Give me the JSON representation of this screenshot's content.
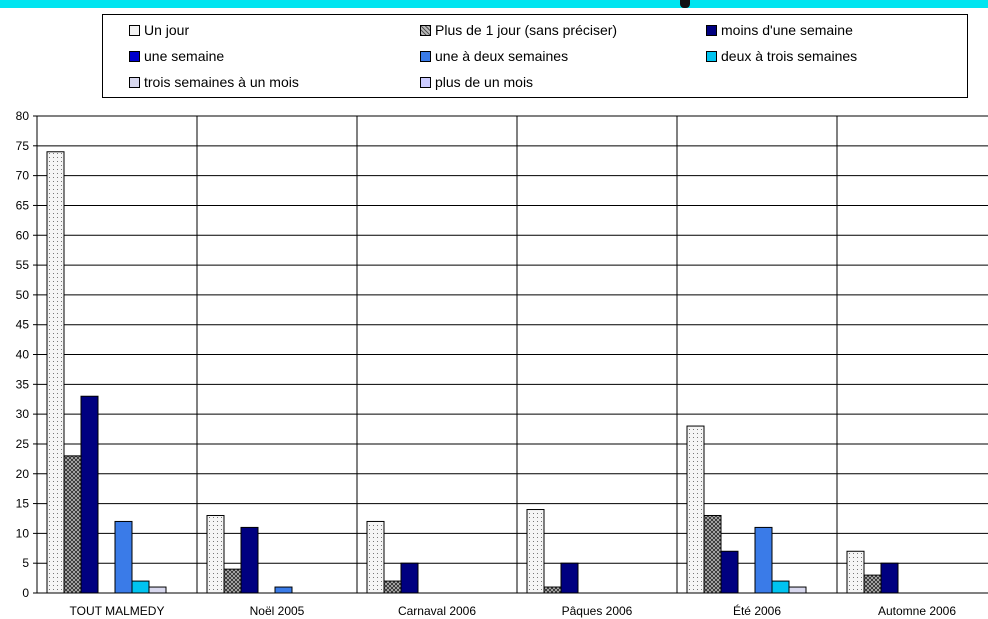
{
  "colors": {
    "top_band": "#00e5f0",
    "un_jour": "#f2f2f2",
    "plus_1_jour": "#808080",
    "moins_semaine": "#000080",
    "une_semaine": "#0000cc",
    "une_deux": "#3a7be8",
    "deux_trois": "#00c4f0",
    "trois_mois": "#d8d8ee",
    "plus_mois": "#ccccff"
  },
  "chart_data": {
    "type": "bar",
    "title": "",
    "xlabel": "",
    "ylabel": "",
    "ylim": [
      0,
      80
    ],
    "yticks": [
      "0",
      "5",
      "10",
      "15",
      "20",
      "25",
      "30",
      "35",
      "40",
      "45",
      "50",
      "55",
      "60",
      "65",
      "70",
      "75",
      "80"
    ],
    "grid": true,
    "legend_position": "top",
    "categories": [
      "TOUT MALMEDY",
      "Noël 2005",
      "Carnaval 2006",
      "Pâques 2006",
      "Été 2006",
      "Automne 2006"
    ],
    "series": [
      {
        "name": "Un jour",
        "color": "#f2f2f2",
        "pattern": "dots",
        "values": [
          74,
          13,
          12,
          14,
          28,
          7
        ]
      },
      {
        "name": "Plus de 1 jour (sans préciser)",
        "color": "#808080",
        "pattern": "crosshatch",
        "values": [
          23,
          4,
          2,
          1,
          13,
          3
        ]
      },
      {
        "name": "moins d'une semaine",
        "color": "#000080",
        "pattern": "solid",
        "values": [
          33,
          11,
          5,
          5,
          7,
          5
        ]
      },
      {
        "name": "une semaine",
        "color": "#0000cc",
        "pattern": "solid",
        "values": [
          0,
          0,
          0,
          0,
          0,
          0
        ]
      },
      {
        "name": "une à deux semaines",
        "color": "#3a7be8",
        "pattern": "solid",
        "values": [
          12,
          1,
          0,
          0,
          11,
          0
        ]
      },
      {
        "name": "deux à trois semaines",
        "color": "#00c4f0",
        "pattern": "solid",
        "values": [
          2,
          0,
          0,
          0,
          2,
          0
        ]
      },
      {
        "name": "trois semaines à un mois",
        "color": "#d8d8ee",
        "pattern": "solid",
        "values": [
          1,
          0,
          0,
          0,
          1,
          0
        ]
      },
      {
        "name": "plus de un mois",
        "color": "#ccccff",
        "pattern": "solid",
        "values": [
          0,
          0,
          0,
          0,
          0,
          0
        ]
      }
    ]
  }
}
